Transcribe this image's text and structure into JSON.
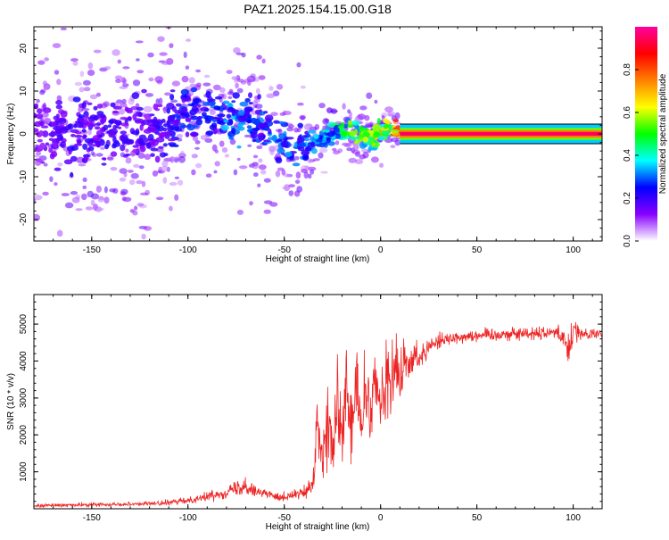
{
  "page": {
    "title": "PAZ1.2025.154.15.00.G18"
  },
  "chart_data": [
    {
      "type": "heatmap",
      "title": "PAZ1.2025.154.15.00.G18",
      "xlabel": "Height of straight line (km)",
      "ylabel": "Frequency (Hz)",
      "xlim": [
        -180,
        115
      ],
      "ylim": [
        -25,
        25
      ],
      "xticks": [
        -150,
        -100,
        -50,
        0,
        50,
        100
      ],
      "xtick_labels": [
        "-150",
        "-100",
        "-50",
        "0",
        "50",
        "100"
      ],
      "yticks": [
        -20,
        -10,
        0,
        10,
        20
      ],
      "ytick_labels": [
        "-20",
        "-10",
        "0",
        "10",
        "20"
      ],
      "colorbar": {
        "label": "Normalized spectral amplitude",
        "range": [
          0,
          1
        ],
        "ticks": [
          0.0,
          0.2,
          0.4,
          0.6,
          0.8
        ],
        "tick_labels": [
          "0.0",
          "0.2",
          "0.4",
          "0.6",
          "0.8"
        ],
        "colors": [
          "#ffffff",
          "#8800ff",
          "#0000ff",
          "#00ffff",
          "#00ff00",
          "#ffff00",
          "#ff8000",
          "#ff0000",
          "#ff00a0"
        ]
      },
      "ridge": {
        "x": [
          -175,
          -160,
          -150,
          -140,
          -130,
          -120,
          -110,
          -100,
          -90,
          -80,
          -70,
          -60,
          -55,
          -50,
          -45,
          -40,
          -35,
          -30,
          -25,
          -20,
          -15,
          -10,
          -5,
          0,
          5,
          10,
          20,
          40,
          60,
          80,
          100,
          115
        ],
        "frequency": [
          0,
          0.5,
          0.8,
          1.0,
          0.5,
          0,
          1,
          5,
          4.5,
          4,
          3,
          1,
          -1,
          -2.5,
          -4,
          -3,
          -2,
          -1,
          0,
          0.5,
          0.3,
          0,
          -1.5,
          0.5,
          1.5,
          0.2,
          0,
          0,
          0,
          0,
          0,
          0
        ],
        "amplitude": [
          0.15,
          0.2,
          0.18,
          0.2,
          0.18,
          0.18,
          0.2,
          0.25,
          0.25,
          0.3,
          0.3,
          0.25,
          0.3,
          0.3,
          0.3,
          0.3,
          0.3,
          0.35,
          0.35,
          0.45,
          0.5,
          0.5,
          0.55,
          0.6,
          0.7,
          0.9,
          0.95,
          0.95,
          0.95,
          0.95,
          0.95,
          0.95
        ]
      }
    },
    {
      "type": "line",
      "xlabel": "Height of straight line (km)",
      "ylabel": "SNR (10 * v/v)",
      "xlim": [
        -180,
        115
      ],
      "ylim": [
        0,
        5800
      ],
      "xticks": [
        -150,
        -100,
        -50,
        0,
        50,
        100
      ],
      "xtick_labels": [
        "-150",
        "-100",
        "-50",
        "0",
        "50",
        "100"
      ],
      "yticks": [
        1000,
        2000,
        3000,
        4000,
        5000
      ],
      "ytick_labels": [
        "1000",
        "2000",
        "3000",
        "4000",
        "5000"
      ],
      "series": [
        {
          "color": "#ee2222",
          "x": [
            -180,
            -170,
            -160,
            -150,
            -140,
            -130,
            -120,
            -110,
            -100,
            -90,
            -80,
            -75,
            -70,
            -65,
            -60,
            -50,
            -45,
            -40,
            -35,
            -33,
            -30,
            -28,
            -25,
            -22,
            -20,
            -18,
            -15,
            -12,
            -10,
            -8,
            -5,
            -3,
            0,
            3,
            5,
            8,
            10,
            12,
            15,
            18,
            20,
            25,
            30,
            40,
            50,
            60,
            70,
            80,
            90,
            95,
            98,
            100,
            105,
            110,
            115
          ],
          "y": [
            80,
            90,
            100,
            110,
            120,
            130,
            140,
            160,
            230,
            330,
            450,
            550,
            650,
            500,
            400,
            320,
            380,
            420,
            600,
            2400,
            1100,
            2500,
            1500,
            2800,
            1800,
            3200,
            2000,
            3500,
            1900,
            3300,
            2300,
            3500,
            2700,
            3800,
            3200,
            3900,
            3400,
            4000,
            3800,
            4200,
            4100,
            4400,
            4550,
            4650,
            4700,
            4720,
            4740,
            4760,
            4780,
            4700,
            4200,
            4900,
            4720,
            4720,
            4720
          ],
          "noise": [
            50,
            50,
            50,
            50,
            50,
            50,
            60,
            70,
            90,
            110,
            150,
            200,
            250,
            180,
            150,
            120,
            150,
            200,
            250,
            900,
            500,
            1100,
            700,
            1200,
            900,
            1400,
            1000,
            1500,
            900,
            1400,
            1000,
            1200,
            800,
            1100,
            900,
            900,
            800,
            700,
            500,
            400,
            350,
            250,
            200,
            180,
            180,
            180,
            180,
            180,
            180,
            250,
            400,
            350,
            150,
            150,
            150
          ]
        }
      ]
    }
  ]
}
